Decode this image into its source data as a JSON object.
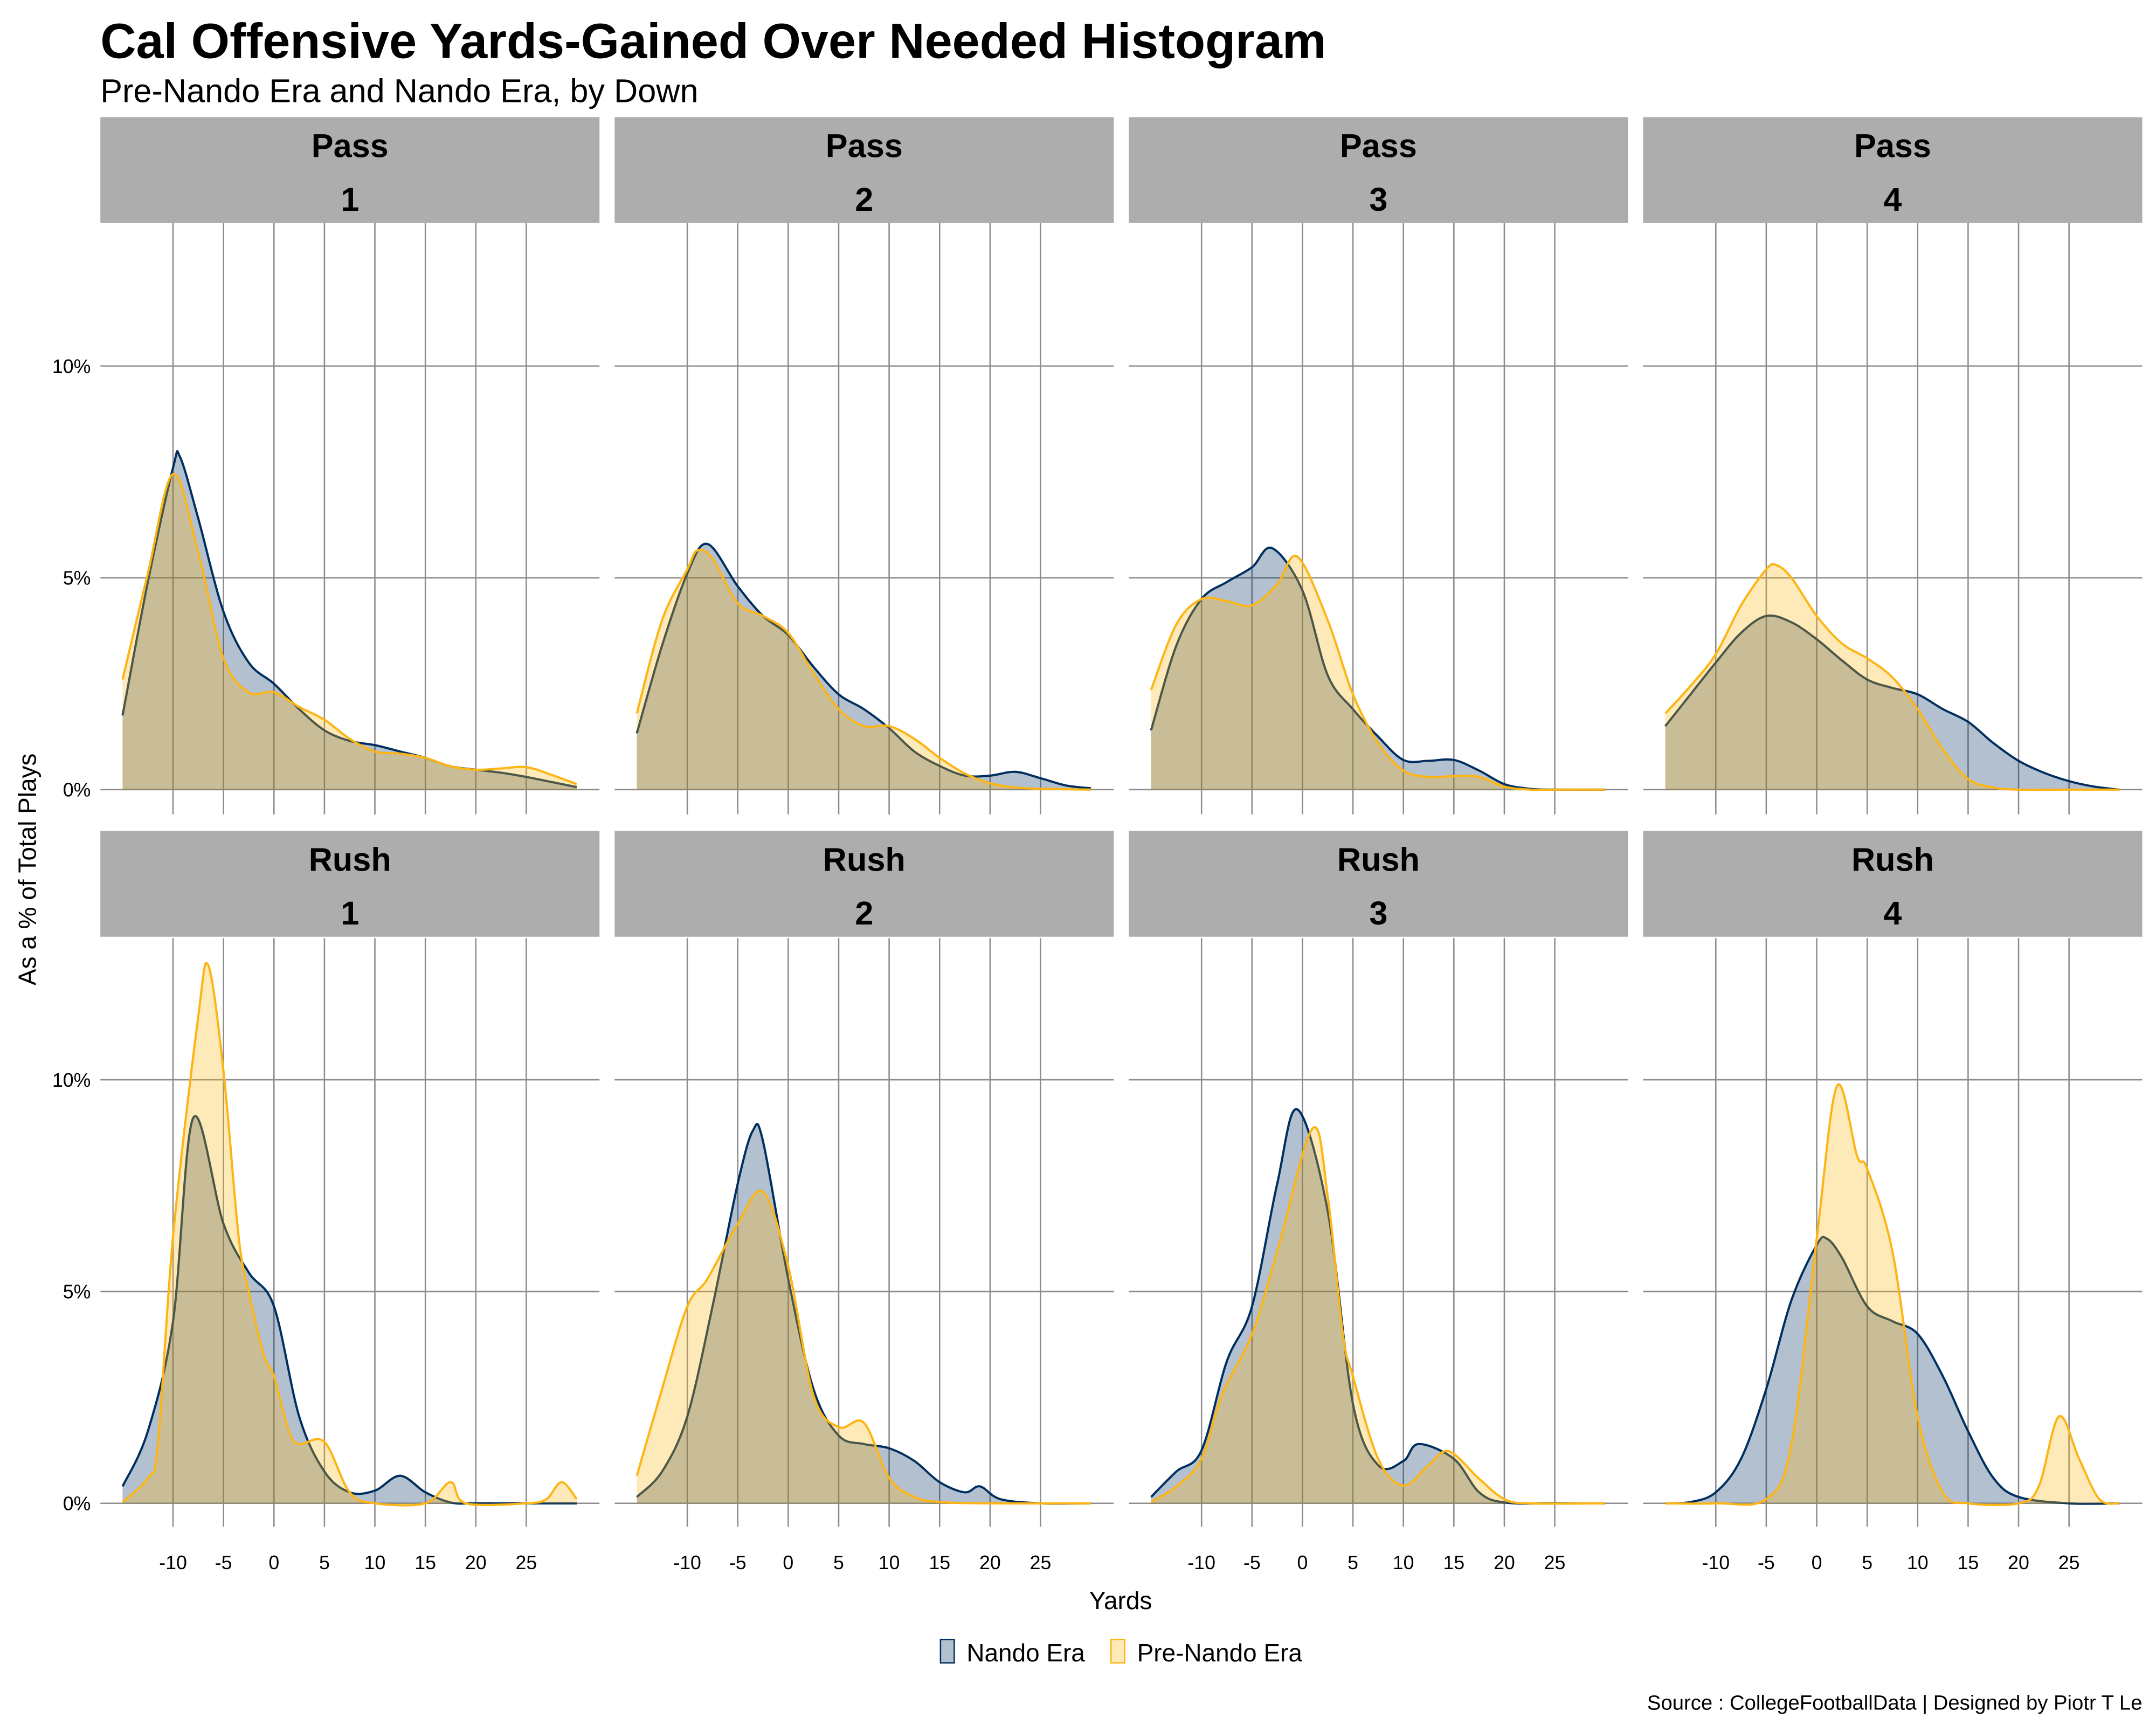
{
  "colors": {
    "nando": "#002F5F",
    "pre_nando": "#FDB515",
    "strip": "#ADADAD",
    "grid": "#8C8C8C"
  },
  "chart_data": {
    "type": "area",
    "title": "Cal Offensive Yards-Gained Over Needed Histogram",
    "subtitle": "Pre-Nando Era and Nando Era, by Down",
    "xlabel": "Yards",
    "ylabel": "As a % of Total Plays",
    "source": "Source : CollegeFootballData | Designed by Piotr T Le",
    "x_ticks": [
      "-10",
      "-5",
      "0",
      "5",
      "10",
      "15",
      "20",
      "25"
    ],
    "x_tick_values": [
      -10,
      -5,
      0,
      5,
      10,
      15,
      20,
      25
    ],
    "y_ticks": [
      "0%",
      "5%",
      "10%"
    ],
    "y_tick_values": [
      0,
      5,
      10
    ],
    "xlim": [
      -17.2,
      32.3
    ],
    "ylim": [
      -0.6,
      13.4
    ],
    "legend": {
      "position": "bottom",
      "entries": [
        "Nando Era",
        "Pre-Nando Era"
      ]
    },
    "panels": [
      {
        "play": "Pass",
        "down": "1",
        "nando": [
          [
            -15,
            1.75
          ],
          [
            -12.5,
            4.9
          ],
          [
            -10,
            7.6
          ],
          [
            -9.3,
            7.85
          ],
          [
            -7.5,
            6.4
          ],
          [
            -5,
            4.2
          ],
          [
            -2.5,
            3.0
          ],
          [
            0,
            2.5
          ],
          [
            2.5,
            1.9
          ],
          [
            5,
            1.4
          ],
          [
            7.5,
            1.15
          ],
          [
            10,
            1.05
          ],
          [
            12.5,
            0.9
          ],
          [
            15,
            0.75
          ],
          [
            17.5,
            0.55
          ],
          [
            20,
            0.47
          ],
          [
            22.5,
            0.4
          ],
          [
            25,
            0.3
          ],
          [
            27.5,
            0.18
          ],
          [
            30,
            0.06
          ]
        ],
        "pre_nando": [
          [
            -15,
            2.6
          ],
          [
            -12.5,
            5.1
          ],
          [
            -10,
            7.45
          ],
          [
            -7.5,
            5.6
          ],
          [
            -5,
            3.1
          ],
          [
            -2.5,
            2.3
          ],
          [
            0,
            2.3
          ],
          [
            2.5,
            1.95
          ],
          [
            5,
            1.65
          ],
          [
            7.5,
            1.2
          ],
          [
            10,
            0.9
          ],
          [
            12.5,
            0.85
          ],
          [
            15,
            0.75
          ],
          [
            17.5,
            0.55
          ],
          [
            20,
            0.47
          ],
          [
            22.5,
            0.5
          ],
          [
            25,
            0.53
          ],
          [
            27.5,
            0.35
          ],
          [
            30,
            0.13
          ]
        ]
      },
      {
        "play": "Pass",
        "down": "2",
        "nando": [
          [
            -15,
            1.33
          ],
          [
            -12.5,
            3.4
          ],
          [
            -10,
            5.1
          ],
          [
            -8,
            5.8
          ],
          [
            -5,
            4.8
          ],
          [
            -2.5,
            4.1
          ],
          [
            0,
            3.65
          ],
          [
            2.5,
            2.9
          ],
          [
            5,
            2.25
          ],
          [
            7.5,
            1.9
          ],
          [
            10,
            1.45
          ],
          [
            12.5,
            0.9
          ],
          [
            15,
            0.56
          ],
          [
            17.5,
            0.33
          ],
          [
            20,
            0.33
          ],
          [
            22.5,
            0.42
          ],
          [
            25,
            0.27
          ],
          [
            27.5,
            0.1
          ],
          [
            30,
            0.03
          ]
        ],
        "pre_nando": [
          [
            -15,
            1.8
          ],
          [
            -12.5,
            4.0
          ],
          [
            -10,
            5.2
          ],
          [
            -9,
            5.65
          ],
          [
            -7.5,
            5.45
          ],
          [
            -5,
            4.4
          ],
          [
            -2.5,
            4.1
          ],
          [
            0,
            3.7
          ],
          [
            2.5,
            2.75
          ],
          [
            5,
            1.9
          ],
          [
            7.5,
            1.5
          ],
          [
            10,
            1.5
          ],
          [
            12.5,
            1.2
          ],
          [
            15,
            0.75
          ],
          [
            17.5,
            0.38
          ],
          [
            20,
            0.15
          ],
          [
            22.5,
            0.05
          ],
          [
            25,
            0.02
          ],
          [
            30,
            0
          ]
        ]
      },
      {
        "play": "Pass",
        "down": "3",
        "nando": [
          [
            -15,
            1.4
          ],
          [
            -12.5,
            3.4
          ],
          [
            -10,
            4.5
          ],
          [
            -7.5,
            4.9
          ],
          [
            -5,
            5.25
          ],
          [
            -3,
            5.7
          ],
          [
            0,
            4.7
          ],
          [
            2.5,
            2.7
          ],
          [
            5,
            1.9
          ],
          [
            7.5,
            1.25
          ],
          [
            10,
            0.7
          ],
          [
            12.5,
            0.68
          ],
          [
            15,
            0.7
          ],
          [
            17.5,
            0.45
          ],
          [
            20,
            0.13
          ],
          [
            22.5,
            0.02
          ],
          [
            25,
            0
          ],
          [
            30,
            0
          ]
        ],
        "pre_nando": [
          [
            -15,
            2.35
          ],
          [
            -12.5,
            3.9
          ],
          [
            -10,
            4.5
          ],
          [
            -7.5,
            4.45
          ],
          [
            -5,
            4.35
          ],
          [
            -2.5,
            4.85
          ],
          [
            -0.5,
            5.5
          ],
          [
            2.5,
            4.0
          ],
          [
            5,
            2.25
          ],
          [
            7.5,
            1.1
          ],
          [
            10,
            0.45
          ],
          [
            12.5,
            0.3
          ],
          [
            15,
            0.32
          ],
          [
            17.5,
            0.3
          ],
          [
            20,
            0.07
          ],
          [
            22.5,
            0
          ],
          [
            25,
            0
          ],
          [
            30,
            0
          ]
        ]
      },
      {
        "play": "Pass",
        "down": "4",
        "nando": [
          [
            -15,
            1.5
          ],
          [
            -12.5,
            2.25
          ],
          [
            -10,
            3.0
          ],
          [
            -7.5,
            3.7
          ],
          [
            -5,
            4.1
          ],
          [
            -2.5,
            3.95
          ],
          [
            0,
            3.55
          ],
          [
            2.5,
            3.05
          ],
          [
            5,
            2.6
          ],
          [
            7.5,
            2.4
          ],
          [
            10,
            2.25
          ],
          [
            12.5,
            1.9
          ],
          [
            15,
            1.6
          ],
          [
            17.5,
            1.1
          ],
          [
            20,
            0.68
          ],
          [
            22.5,
            0.4
          ],
          [
            25,
            0.2
          ],
          [
            27.5,
            0.07
          ],
          [
            30,
            0
          ]
        ],
        "pre_nando": [
          [
            -15,
            1.8
          ],
          [
            -12.5,
            2.45
          ],
          [
            -10,
            3.2
          ],
          [
            -7.5,
            4.35
          ],
          [
            -5,
            5.2
          ],
          [
            -4,
            5.3
          ],
          [
            -2.5,
            5.0
          ],
          [
            0,
            4.1
          ],
          [
            2.5,
            3.45
          ],
          [
            5,
            3.1
          ],
          [
            7.5,
            2.65
          ],
          [
            10,
            1.9
          ],
          [
            12.5,
            0.95
          ],
          [
            15,
            0.25
          ],
          [
            17.5,
            0.05
          ],
          [
            20,
            0
          ],
          [
            25,
            0
          ],
          [
            30,
            0
          ]
        ]
      },
      {
        "play": "Rush",
        "down": "1",
        "nando": [
          [
            -15,
            0.4
          ],
          [
            -12.5,
            1.7
          ],
          [
            -10,
            4.3
          ],
          [
            -8,
            9.1
          ],
          [
            -5,
            6.6
          ],
          [
            -2.5,
            5.45
          ],
          [
            0,
            4.65
          ],
          [
            2.5,
            2.05
          ],
          [
            5,
            0.75
          ],
          [
            7.5,
            0.26
          ],
          [
            10,
            0.3
          ],
          [
            12.5,
            0.65
          ],
          [
            15,
            0.26
          ],
          [
            17.5,
            0.02
          ],
          [
            20,
            0
          ],
          [
            25,
            0
          ],
          [
            30,
            0
          ]
        ],
        "pre_nando": [
          [
            -15,
            0.03
          ],
          [
            -12.5,
            0.6
          ],
          [
            -11.5,
            1.4
          ],
          [
            -10,
            6.3
          ],
          [
            -7.5,
            11.5
          ],
          [
            -6.5,
            12.7
          ],
          [
            -5,
            10.2
          ],
          [
            -3.5,
            6.3
          ],
          [
            -2.5,
            5.0
          ],
          [
            -1,
            3.5
          ],
          [
            0,
            3.0
          ],
          [
            1.5,
            1.7
          ],
          [
            2.5,
            1.4
          ],
          [
            5,
            1.45
          ],
          [
            7.5,
            0.26
          ],
          [
            10,
            0
          ],
          [
            15,
            0
          ],
          [
            17.5,
            0.5
          ],
          [
            19,
            0
          ],
          [
            25,
            0
          ],
          [
            27,
            0.1
          ],
          [
            28.5,
            0.5
          ],
          [
            30,
            0.1
          ]
        ]
      },
      {
        "play": "Rush",
        "down": "2",
        "nando": [
          [
            -15,
            0.15
          ],
          [
            -12.5,
            0.75
          ],
          [
            -10,
            2.05
          ],
          [
            -7.5,
            4.65
          ],
          [
            -5,
            7.55
          ],
          [
            -3.5,
            8.8
          ],
          [
            -2.5,
            8.55
          ],
          [
            0,
            5.3
          ],
          [
            2.5,
            2.7
          ],
          [
            5,
            1.6
          ],
          [
            7.5,
            1.4
          ],
          [
            10,
            1.3
          ],
          [
            12.5,
            1.0
          ],
          [
            15,
            0.5
          ],
          [
            17.5,
            0.26
          ],
          [
            19,
            0.4
          ],
          [
            21,
            0.1
          ],
          [
            25,
            0
          ],
          [
            30,
            0
          ]
        ],
        "pre_nando": [
          [
            -15,
            0.65
          ],
          [
            -12.5,
            2.7
          ],
          [
            -10,
            4.65
          ],
          [
            -8,
            5.3
          ],
          [
            -5,
            6.6
          ],
          [
            -2.5,
            7.35
          ],
          [
            0,
            5.6
          ],
          [
            2.5,
            2.55
          ],
          [
            5,
            1.8
          ],
          [
            7.5,
            1.9
          ],
          [
            10,
            0.6
          ],
          [
            12.5,
            0.15
          ],
          [
            15,
            0.03
          ],
          [
            20,
            0
          ],
          [
            30,
            0
          ]
        ]
      },
      {
        "play": "Rush",
        "down": "3",
        "nando": [
          [
            -15,
            0.15
          ],
          [
            -12.5,
            0.75
          ],
          [
            -10,
            1.25
          ],
          [
            -7.5,
            3.35
          ],
          [
            -5,
            4.65
          ],
          [
            -2.5,
            7.55
          ],
          [
            -0.5,
            9.3
          ],
          [
            2.5,
            6.9
          ],
          [
            5,
            2.35
          ],
          [
            7.5,
            0.9
          ],
          [
            10,
            1.0
          ],
          [
            11.5,
            1.4
          ],
          [
            15,
            1.05
          ],
          [
            17.5,
            0.26
          ],
          [
            20,
            0.02
          ],
          [
            25,
            0
          ],
          [
            30,
            0
          ]
        ],
        "pre_nando": [
          [
            -15,
            0.03
          ],
          [
            -12.5,
            0.4
          ],
          [
            -10,
            1.05
          ],
          [
            -8,
            2.55
          ],
          [
            -5,
            4.0
          ],
          [
            -2.5,
            5.95
          ],
          [
            1,
            8.85
          ],
          [
            2.5,
            7.25
          ],
          [
            4,
            4.0
          ],
          [
            5,
            3.0
          ],
          [
            7.5,
            1.05
          ],
          [
            10,
            0.42
          ],
          [
            12.5,
            0.9
          ],
          [
            14.5,
            1.23
          ],
          [
            17.5,
            0.58
          ],
          [
            20,
            0.1
          ],
          [
            22.5,
            0
          ],
          [
            30,
            0
          ]
        ]
      },
      {
        "play": "Rush",
        "down": "4",
        "nando": [
          [
            -15,
            0
          ],
          [
            -12.5,
            0.03
          ],
          [
            -10,
            0.26
          ],
          [
            -7.5,
            1.05
          ],
          [
            -5,
            2.7
          ],
          [
            -2.5,
            4.8
          ],
          [
            0,
            6.1
          ],
          [
            1,
            6.25
          ],
          [
            2.5,
            5.8
          ],
          [
            5,
            4.65
          ],
          [
            7.5,
            4.3
          ],
          [
            10,
            4.0
          ],
          [
            12.5,
            3.0
          ],
          [
            15,
            1.7
          ],
          [
            17.5,
            0.6
          ],
          [
            20,
            0.15
          ],
          [
            25,
            0
          ],
          [
            30,
            0
          ]
        ],
        "pre_nando": [
          [
            -15,
            0
          ],
          [
            -10,
            0
          ],
          [
            -5,
            0.1
          ],
          [
            -2.5,
            1.4
          ],
          [
            0,
            6.25
          ],
          [
            2,
            9.85
          ],
          [
            4,
            8.2
          ],
          [
            5,
            7.9
          ],
          [
            7.5,
            5.95
          ],
          [
            10,
            2.05
          ],
          [
            12.5,
            0.26
          ],
          [
            15,
            0
          ],
          [
            20,
            0
          ],
          [
            22,
            0.4
          ],
          [
            24,
            2.05
          ],
          [
            26,
            1.05
          ],
          [
            28,
            0.1
          ],
          [
            30,
            0
          ]
        ]
      }
    ]
  }
}
